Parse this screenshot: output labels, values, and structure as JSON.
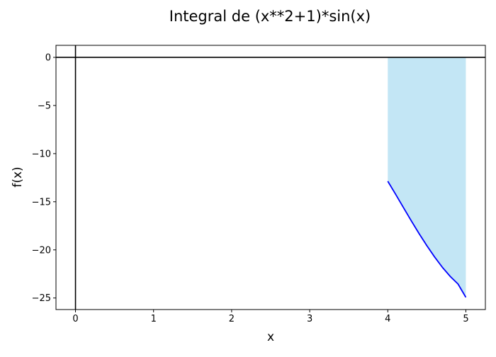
{
  "chart_data": {
    "type": "area",
    "title": "Integral de (x**2+1)*sin(x)",
    "xlabel": "x",
    "ylabel": "f(x)",
    "xlim": [
      -0.25,
      5.25
    ],
    "ylim": [
      -26.2,
      1.25
    ],
    "xticks": [
      0,
      1,
      2,
      3,
      4,
      5
    ],
    "yticks": [
      0,
      -5,
      -10,
      -15,
      -20,
      -25
    ],
    "grid": false,
    "function": "(x**2+1)*sin(x)",
    "integration_bounds": [
      4,
      5
    ],
    "series": [
      {
        "x": [
          4.0,
          4.1,
          4.2,
          4.3,
          4.4,
          4.5,
          4.6,
          4.7,
          4.8,
          4.9,
          5.0
        ],
        "values": [
          -12.87,
          -14.22,
          -15.6,
          -16.97,
          -18.3,
          -19.56,
          -20.74,
          -21.82,
          -22.76,
          -23.55,
          -24.93
        ]
      }
    ],
    "colors": {
      "line": "#0000ff",
      "fill": "#87ceeb",
      "axes_lines": "#000000"
    }
  }
}
